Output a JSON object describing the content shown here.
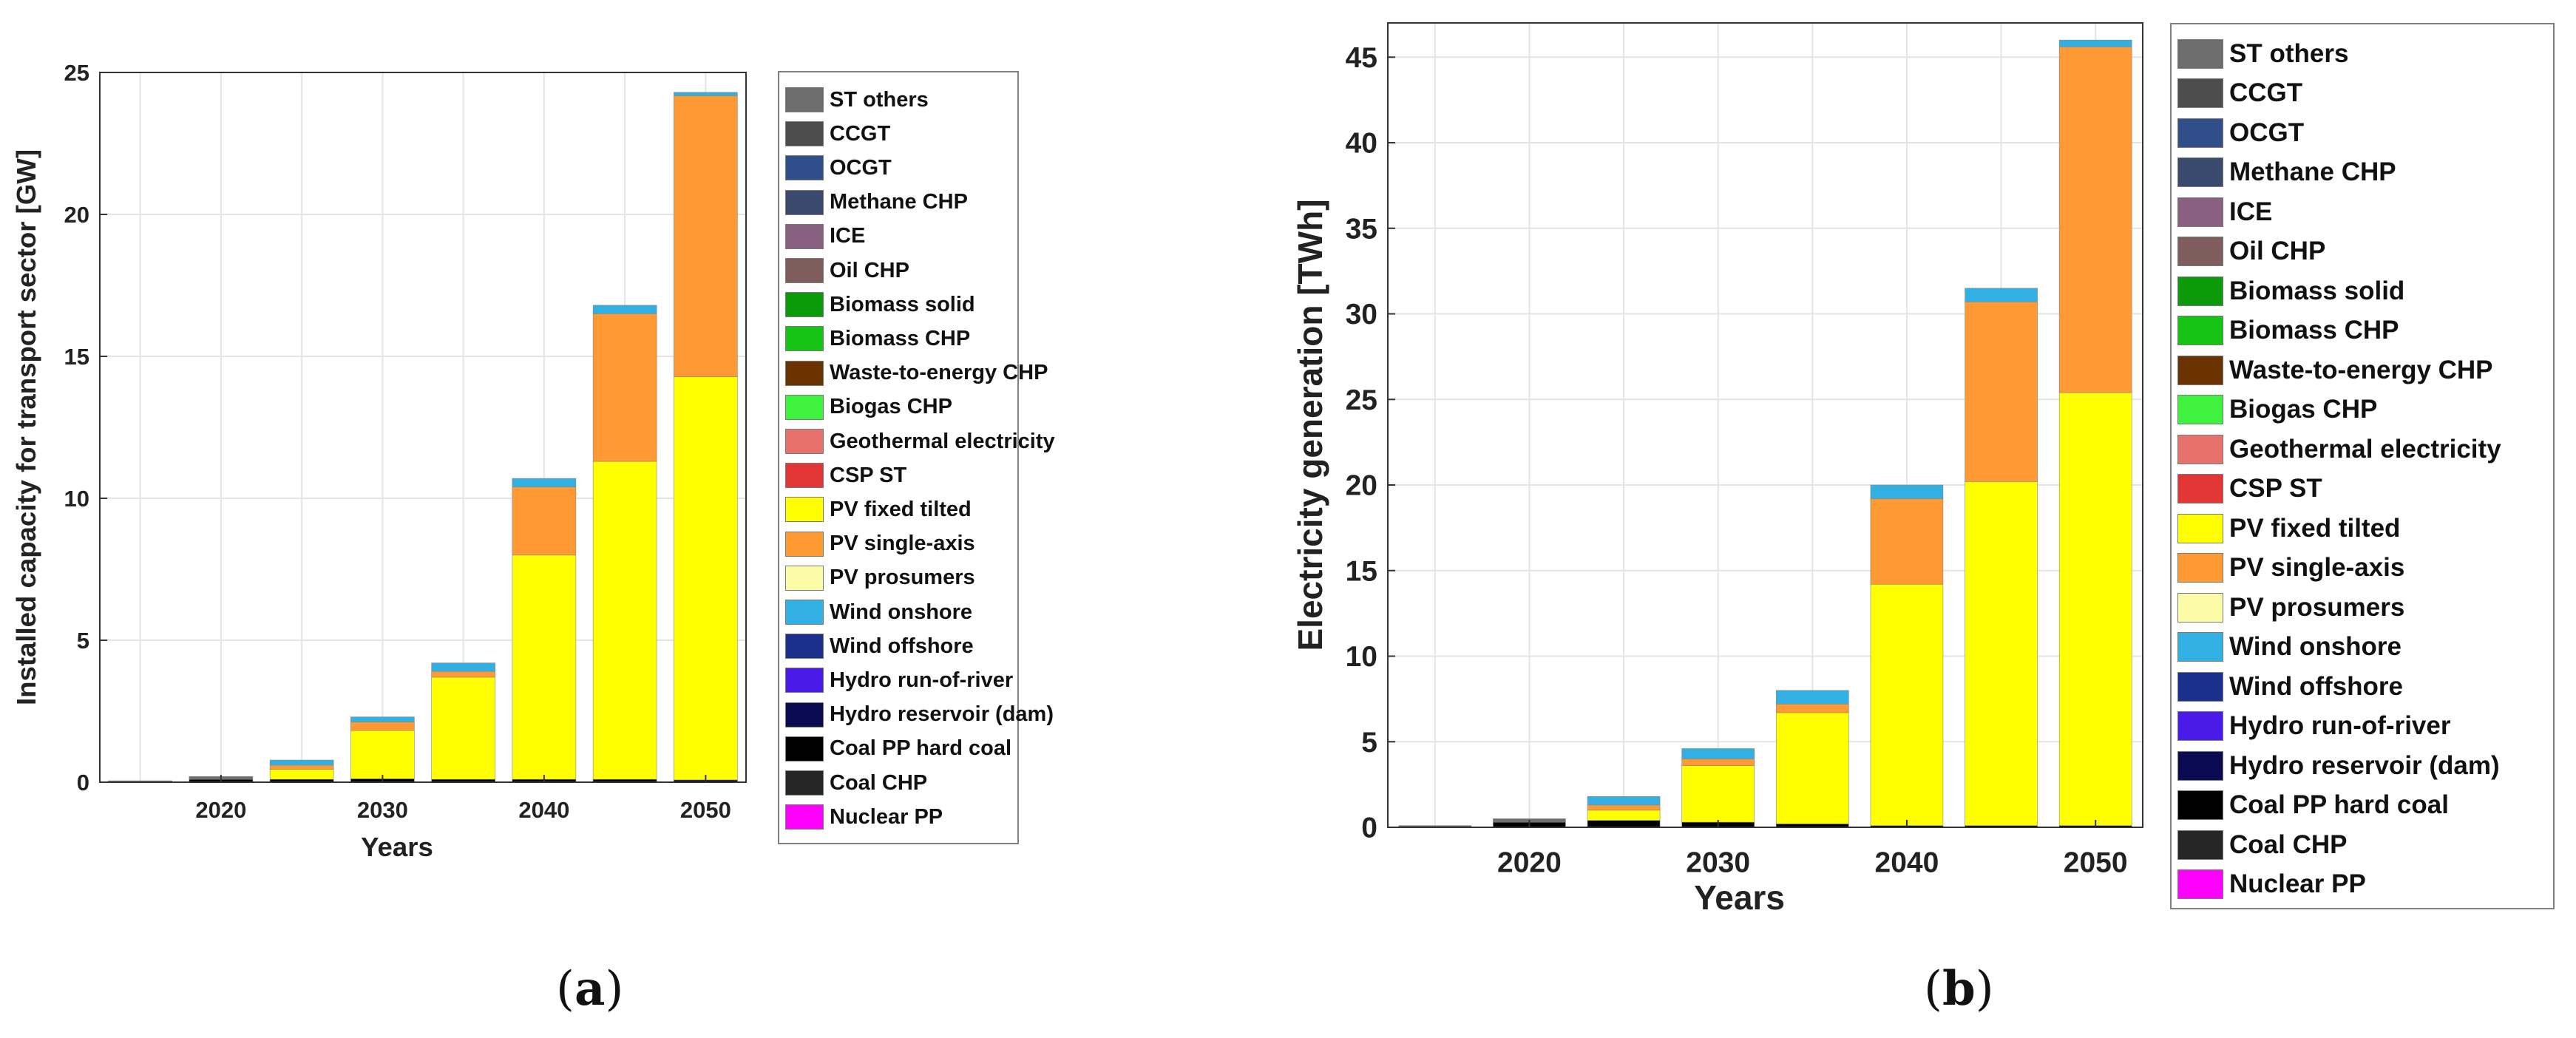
{
  "series_styles": [
    {
      "name": "ST others",
      "color": "#6e6e6e"
    },
    {
      "name": "CCGT",
      "color": "#4d4d4d"
    },
    {
      "name": "OCGT",
      "color": "#2f4e8a"
    },
    {
      "name": "Methane CHP",
      "color": "#3a4a6e"
    },
    {
      "name": "ICE",
      "color": "#8a6080"
    },
    {
      "name": "Oil CHP",
      "color": "#7f5d5d"
    },
    {
      "name": "Biomass solid",
      "color": "#0a9a0a"
    },
    {
      "name": "Biomass CHP",
      "color": "#16c416"
    },
    {
      "name": "Waste-to-energy CHP",
      "color": "#6b3300"
    },
    {
      "name": "Biogas CHP",
      "color": "#3ef23e"
    },
    {
      "name": "Geothermal electricity",
      "color": "#e8706c"
    },
    {
      "name": "CSP ST",
      "color": "#e23535"
    },
    {
      "name": "PV fixed tilted",
      "color": "#ffff00"
    },
    {
      "name": "PV single-axis",
      "color": "#ff9933"
    },
    {
      "name": "PV prosumers",
      "color": "#fbfba8"
    },
    {
      "name": "Wind onshore",
      "color": "#33b0e3"
    },
    {
      "name": "Wind offshore",
      "color": "#1b2f8c"
    },
    {
      "name": "Hydro run-of-river",
      "color": "#4a1be8"
    },
    {
      "name": "Hydro reservoir (dam)",
      "color": "#0a0a52"
    },
    {
      "name": "Coal PP hard coal",
      "color": "#000000"
    },
    {
      "name": "Coal CHP",
      "color": "#262626"
    },
    {
      "name": "Nuclear PP",
      "color": "#ff00ff"
    }
  ],
  "captions": {
    "a": "a",
    "b": "b"
  },
  "chart_data": [
    {
      "id": "a",
      "type": "bar",
      "stacked": true,
      "title": "",
      "xlabel": "Years",
      "ylabel": "Installed capacity for transport sector [GW]",
      "categories": [
        "2015",
        "2020",
        "2025",
        "2030",
        "2035",
        "2040",
        "2045",
        "2050"
      ],
      "x_tick_labels": [
        "2020",
        "2030",
        "2040",
        "2050"
      ],
      "ylim": [
        0,
        25
      ],
      "yticks": [
        0,
        5,
        10,
        15,
        20,
        25
      ],
      "grid": true,
      "legend": "right",
      "series": [
        {
          "name": "Coal PP hard coal",
          "values": [
            0.0,
            0.1,
            0.1,
            0.12,
            0.1,
            0.1,
            0.1,
            0.08
          ]
        },
        {
          "name": "PV fixed tilted",
          "values": [
            0.0,
            0.0,
            0.35,
            1.7,
            3.6,
            7.9,
            11.2,
            14.2
          ]
        },
        {
          "name": "PV single-axis",
          "values": [
            0.0,
            0.0,
            0.15,
            0.3,
            0.2,
            2.4,
            5.2,
            9.9
          ]
        },
        {
          "name": "Wind onshore",
          "values": [
            0.0,
            0.0,
            0.18,
            0.18,
            0.3,
            0.3,
            0.3,
            0.12
          ]
        },
        {
          "name": "ST others",
          "values": [
            0.05,
            0.1,
            0.0,
            0.0,
            0.0,
            0.0,
            0.0,
            0.0
          ]
        }
      ]
    },
    {
      "id": "b",
      "type": "bar",
      "stacked": true,
      "title": "",
      "xlabel": "Years",
      "ylabel": "Electricity generation [TWh]",
      "categories": [
        "2015",
        "2020",
        "2025",
        "2030",
        "2035",
        "2040",
        "2045",
        "2050"
      ],
      "x_tick_labels": [
        "2020",
        "2030",
        "2040",
        "2050"
      ],
      "ylim": [
        0,
        47
      ],
      "yticks": [
        0,
        5,
        10,
        15,
        20,
        25,
        30,
        35,
        40,
        45
      ],
      "grid": true,
      "legend": "right",
      "series": [
        {
          "name": "Coal PP hard coal",
          "values": [
            0.0,
            0.3,
            0.4,
            0.3,
            0.2,
            0.1,
            0.1,
            0.1
          ]
        },
        {
          "name": "PV fixed tilted",
          "values": [
            0.0,
            0.0,
            0.6,
            3.3,
            6.5,
            14.1,
            20.1,
            25.3
          ]
        },
        {
          "name": "PV single-axis",
          "values": [
            0.0,
            0.0,
            0.3,
            0.4,
            0.5,
            5.0,
            10.5,
            20.2
          ]
        },
        {
          "name": "Wind onshore",
          "values": [
            0.0,
            0.0,
            0.5,
            0.6,
            0.8,
            0.8,
            0.8,
            0.4
          ]
        },
        {
          "name": "ST others",
          "values": [
            0.1,
            0.2,
            0.0,
            0.0,
            0.0,
            0.0,
            0.0,
            0.0
          ]
        }
      ]
    }
  ]
}
